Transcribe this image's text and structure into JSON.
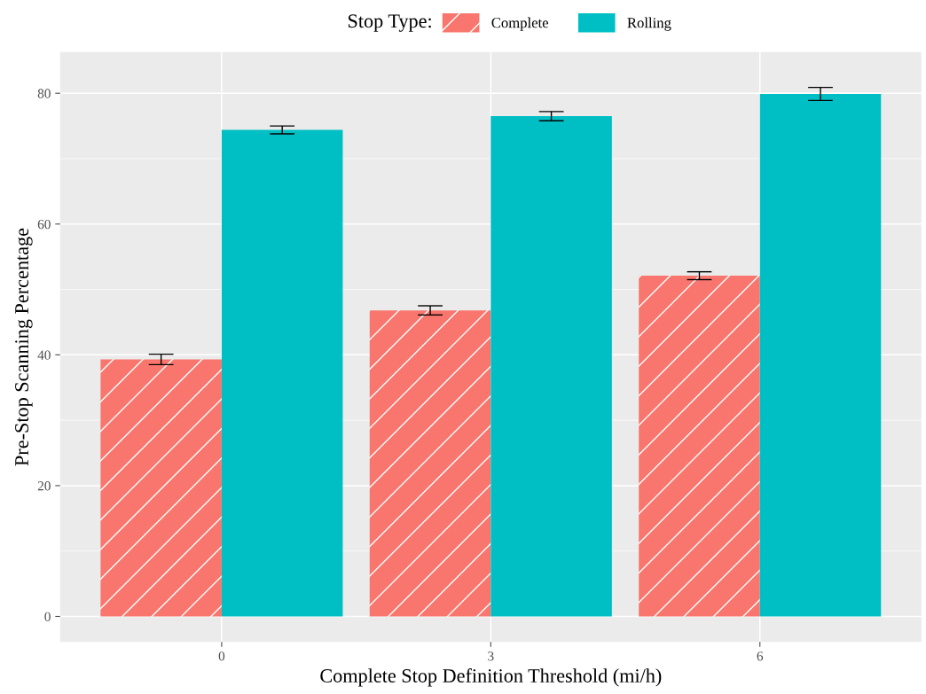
{
  "chart_data": {
    "type": "bar",
    "xlabel": "Complete Stop Definition Threshold (mi/h)",
    "ylabel": "Pre-Stop Scanning Percentage",
    "legend_title": "Stop Type:",
    "legend": "top",
    "grid": true,
    "categories": [
      "0",
      "3",
      "6"
    ],
    "ylim": [
      -3.9,
      86.3
    ],
    "yticks": [
      0,
      20,
      40,
      60,
      80
    ],
    "series": [
      {
        "name": "Complete",
        "color": "#f8766d",
        "values": [
          39.3,
          46.8,
          52.1
        ],
        "errors": [
          0.8,
          0.7,
          0.6
        ]
      },
      {
        "name": "Rolling",
        "color": "#00bfc4",
        "values": [
          74.4,
          76.5,
          79.9
        ],
        "errors": [
          0.6,
          0.7,
          1.0
        ]
      }
    ]
  }
}
